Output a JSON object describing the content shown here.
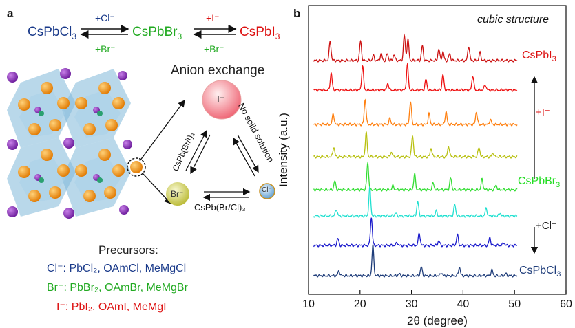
{
  "panel_a": {
    "letter": "a",
    "top_row": {
      "cl_compound": "CsPbCl3",
      "br_compound": "CsPbBr3",
      "i_compound": "CsPbI3",
      "arrow1_top": "+Cl⁻",
      "arrow1_bottom": "+Br⁻",
      "arrow2_top": "+I⁻",
      "arrow2_bottom": "+Br⁻"
    },
    "anion_exchange": "Anion exchange",
    "ions": {
      "i": "I⁻",
      "br": "Br⁻",
      "cl": "Cl⁻"
    },
    "edges": {
      "br_i": "CsPb(Br/I)₃",
      "i_cl": "No solid solution",
      "br_cl": "CsPb(Br/Cl)₃"
    },
    "precursors": {
      "title": "Precursors:",
      "cl": "Cl⁻: PbCl₂, OAmCl, MeMgCl",
      "br": "Br⁻: PbBr₂, OAmBr, MeMgBr",
      "i": "I⁻: PbI₂, OAmI, MeMgI"
    },
    "colors": {
      "cl": "#1a3a8a",
      "br": "#22aa22",
      "i": "#dd1111"
    }
  },
  "panel_b": {
    "letter": "b",
    "annotation": "cubic structure",
    "label_cspbi3": "CsPbI3",
    "label_cspbbr3": "CsPbBr3",
    "label_cspbcl3": "CsPbCl3",
    "label_plus_i": "+I⁻",
    "label_plus_cl": "+Cl⁻"
  },
  "chart_data": {
    "type": "line",
    "title": "",
    "xlabel": "2θ (degree)",
    "ylabel": "Intensity (a.u.)",
    "xlim": [
      10,
      60
    ],
    "xticks": [
      10,
      20,
      30,
      40,
      50,
      60
    ],
    "y_ticks_shown": false,
    "series": [
      {
        "color": "#cc1111",
        "peaks": [
          [
            14.2,
            1.0
          ],
          [
            20.1,
            1.0
          ],
          [
            22.6,
            0.25
          ],
          [
            24.1,
            0.35
          ],
          [
            25.3,
            0.35
          ],
          [
            26.6,
            0.3
          ],
          [
            28.6,
            1.3
          ],
          [
            29.3,
            1.1
          ],
          [
            32.1,
            0.75
          ],
          [
            35.3,
            0.6
          ],
          [
            36.1,
            0.45
          ],
          [
            37.4,
            0.35
          ],
          [
            41.1,
            0.75
          ],
          [
            43.3,
            0.4
          ]
        ]
      },
      {
        "color": "#ee1111",
        "peaks": [
          [
            14.4,
            0.9
          ],
          [
            20.5,
            1.25
          ],
          [
            25.4,
            0.35
          ],
          [
            29.2,
            1.3
          ],
          [
            32.8,
            0.55
          ],
          [
            36.1,
            0.8
          ],
          [
            41.9,
            0.75
          ],
          [
            44.3,
            0.3
          ]
        ]
      },
      {
        "color": "#ff7f0e",
        "peaks": [
          [
            14.8,
            0.55
          ],
          [
            21.0,
            1.3
          ],
          [
            25.8,
            0.3
          ],
          [
            29.8,
            1.2
          ],
          [
            33.4,
            0.55
          ],
          [
            36.7,
            0.65
          ],
          [
            42.6,
            0.65
          ],
          [
            45.3,
            0.25
          ]
        ]
      },
      {
        "color": "#b8c010",
        "peaks": [
          [
            14.9,
            0.5
          ],
          [
            21.2,
            1.25
          ],
          [
            26.1,
            0.25
          ],
          [
            30.2,
            1.1
          ],
          [
            33.8,
            0.45
          ],
          [
            37.2,
            0.55
          ],
          [
            43.1,
            0.5
          ],
          [
            45.8,
            0.2
          ]
        ]
      },
      {
        "color": "#33dd33",
        "peaks": [
          [
            15.1,
            0.45
          ],
          [
            21.5,
            1.4
          ],
          [
            26.4,
            0.2
          ],
          [
            30.6,
            0.8
          ],
          [
            34.2,
            0.35
          ],
          [
            37.6,
            0.6
          ],
          [
            43.7,
            0.55
          ],
          [
            46.4,
            0.25
          ]
        ]
      },
      {
        "color": "#20e0d0",
        "peaks": [
          [
            15.4,
            0.35
          ],
          [
            21.9,
            1.45
          ],
          [
            26.9,
            0.15
          ],
          [
            31.2,
            0.75
          ],
          [
            34.8,
            0.25
          ],
          [
            38.4,
            0.6
          ],
          [
            44.5,
            0.4
          ],
          [
            47.2,
            0.15
          ]
        ]
      },
      {
        "color": "#1a1acc",
        "peaks": [
          [
            15.7,
            0.35
          ],
          [
            22.2,
            1.45
          ],
          [
            27.2,
            0.15
          ],
          [
            31.5,
            0.65
          ],
          [
            35.3,
            0.25
          ],
          [
            38.9,
            0.55
          ],
          [
            45.2,
            0.4
          ],
          [
            47.9,
            0.15
          ]
        ]
      },
      {
        "color": "#1f3d7a",
        "peaks": [
          [
            15.9,
            0.25
          ],
          [
            22.5,
            1.55
          ],
          [
            27.6,
            0.1
          ],
          [
            31.9,
            0.45
          ],
          [
            35.8,
            0.15
          ],
          [
            39.3,
            0.45
          ],
          [
            45.6,
            0.3
          ],
          [
            48.3,
            0.1
          ]
        ]
      }
    ]
  }
}
